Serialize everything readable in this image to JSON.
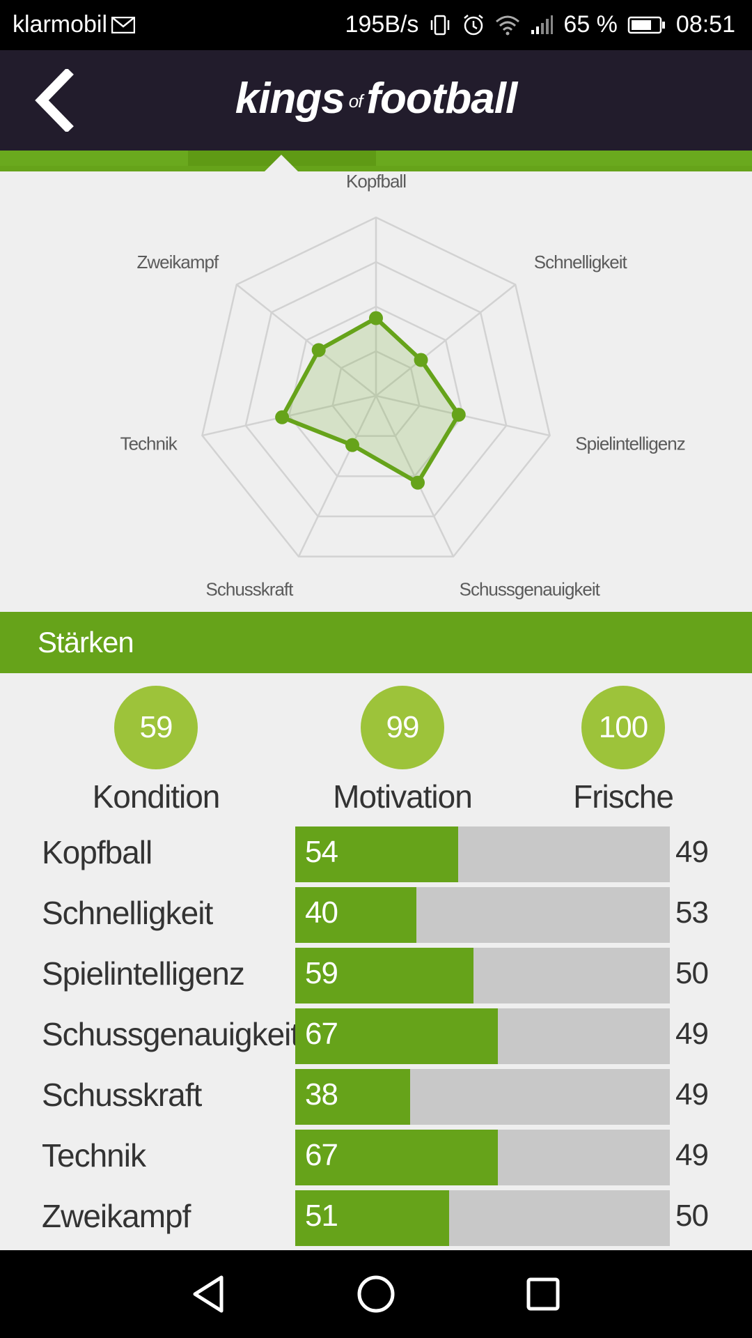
{
  "status_bar": {
    "carrier": "klarmobil",
    "net_speed": "195B/s",
    "battery": "65 %",
    "time": "08:51"
  },
  "header": {
    "logo_left": "kings",
    "logo_of": "of",
    "logo_right": "football"
  },
  "chart_data": {
    "type": "radar",
    "axes": [
      "Kopfball",
      "Schnelligkeit",
      "Spielintelligenz",
      "Schussgenauigkeit",
      "Schusskraft",
      "Technik",
      "Zweikampf"
    ],
    "values": [
      54,
      40,
      59,
      67,
      38,
      67,
      51
    ],
    "comparison": [
      49,
      53,
      50,
      49,
      49,
      49,
      50
    ],
    "max": 100,
    "grid_rings": 4,
    "series_color": "#66a31a"
  },
  "section_title": "Stärken",
  "stats": [
    {
      "label": "Kondition",
      "value": "59"
    },
    {
      "label": "Motivation",
      "value": "99"
    },
    {
      "label": "Frische",
      "value": "100"
    }
  ],
  "skills": [
    {
      "name": "Kopfball",
      "value": 54,
      "compare": "49"
    },
    {
      "name": "Schnelligkeit",
      "value": 40,
      "compare": "53"
    },
    {
      "name": "Spielintelligenz",
      "value": 59,
      "compare": "50"
    },
    {
      "name": "Schussgenauigkeit",
      "value": 67,
      "compare": "49"
    },
    {
      "name": "Schusskraft",
      "value": 38,
      "compare": "49"
    },
    {
      "name": "Technik",
      "value": 67,
      "compare": "49"
    },
    {
      "name": "Zweikampf",
      "value": 51,
      "compare": "50"
    }
  ],
  "colors": {
    "brand_green": "#66a31a",
    "circle_green": "#9dc33a",
    "header_dark": "#221c2c"
  }
}
